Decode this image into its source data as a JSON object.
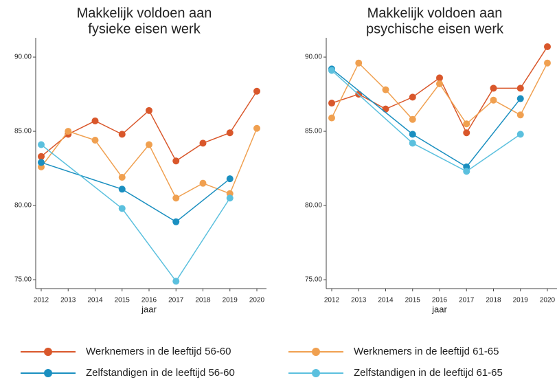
{
  "chart_data": [
    {
      "type": "line",
      "title": [
        "Makkelijk voldoen aan",
        "fysieke eisen werk"
      ],
      "x_label": "jaar",
      "categories": [
        "2012",
        "2013",
        "2014",
        "2015",
        "2016",
        "2017",
        "2018",
        "2019",
        "2020"
      ],
      "ylim": [
        74.4,
        91.3
      ],
      "yticks": [
        {
          "value": 75,
          "label": "75.00"
        },
        {
          "value": 80,
          "label": "80.00"
        },
        {
          "value": 85,
          "label": "85.00"
        },
        {
          "value": 90,
          "label": "90.00"
        }
      ],
      "series": [
        {
          "name": "Werknemers in de leeftijd 56-60",
          "color": "#d9572b",
          "values": [
            83.3,
            84.8,
            85.7,
            84.8,
            86.4,
            83.0,
            84.2,
            84.9,
            87.7
          ]
        },
        {
          "name": "Werknemers in de leeftijd 61-65",
          "color": "#f0a050",
          "values": [
            82.6,
            85.0,
            84.4,
            81.9,
            84.1,
            80.5,
            81.5,
            80.8,
            85.2
          ]
        },
        {
          "name": "Zelfstandigen in de leeftijd 56-60",
          "color": "#1a8fc0",
          "values": [
            82.9,
            null,
            null,
            81.1,
            null,
            78.9,
            null,
            81.8,
            null
          ]
        },
        {
          "name": "Zelfstandigen in de leeftijd 61-65",
          "color": "#5bc0de",
          "values": [
            84.1,
            null,
            null,
            79.8,
            null,
            74.9,
            null,
            80.5,
            null
          ]
        }
      ]
    },
    {
      "type": "line",
      "title": [
        "Makkelijk voldoen aan",
        "psychische eisen werk"
      ],
      "x_label": "jaar",
      "categories": [
        "2012",
        "2013",
        "2014",
        "2015",
        "2016",
        "2017",
        "2018",
        "2019",
        "2020"
      ],
      "ylim": [
        74.4,
        91.3
      ],
      "yticks": [
        {
          "value": 75,
          "label": "75.00"
        },
        {
          "value": 80,
          "label": "80.00"
        },
        {
          "value": 85,
          "label": "85.00"
        },
        {
          "value": 90,
          "label": "90.00"
        }
      ],
      "series": [
        {
          "name": "Werknemers in de leeftijd 56-60",
          "color": "#d9572b",
          "values": [
            86.9,
            87.5,
            86.5,
            87.3,
            88.6,
            84.9,
            87.9,
            87.9,
            90.7
          ]
        },
        {
          "name": "Werknemers in de leeftijd 61-65",
          "color": "#f0a050",
          "values": [
            85.9,
            89.6,
            87.8,
            85.8,
            88.2,
            85.5,
            87.1,
            86.1,
            89.6
          ]
        },
        {
          "name": "Zelfstandigen in de leeftijd 56-60",
          "color": "#1a8fc0",
          "values": [
            89.2,
            null,
            null,
            84.8,
            null,
            82.6,
            null,
            87.2,
            null
          ]
        },
        {
          "name": "Zelfstandigen in de leeftijd 61-65",
          "color": "#5bc0de",
          "values": [
            89.1,
            null,
            null,
            84.2,
            null,
            82.3,
            null,
            84.8,
            null
          ]
        }
      ]
    }
  ]
}
